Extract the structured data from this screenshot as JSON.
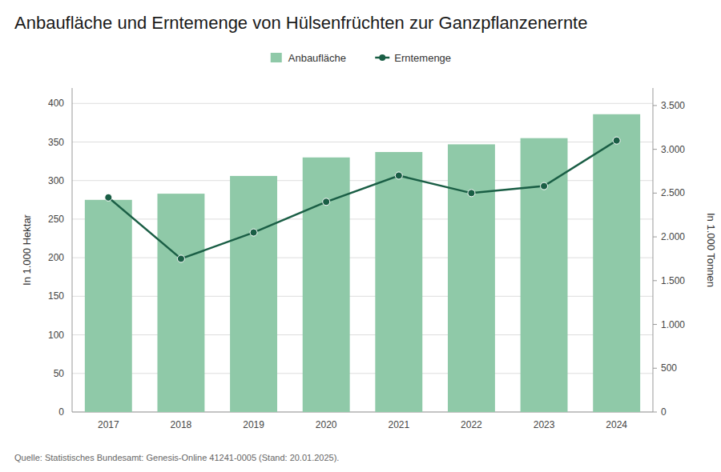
{
  "chart_data": {
    "type": "bar",
    "title": "Anbaufläche und Erntemenge von Hülsenfrüchten zur Ganzpflanzenernte",
    "categories": [
      "2017",
      "2018",
      "2019",
      "2020",
      "2021",
      "2022",
      "2023",
      "2024"
    ],
    "series": [
      {
        "name": "Anbaufläche",
        "type": "bar",
        "color": "#8fC9A8",
        "values": [
          275,
          283,
          306,
          330,
          337,
          347,
          355,
          386
        ]
      },
      {
        "name": "Erntemenge",
        "type": "line",
        "axis": "y2",
        "color": "#1A5E45",
        "marker": "circle",
        "line_style": "solid",
        "values": [
          2450,
          1750,
          2050,
          2400,
          2700,
          2500,
          2580,
          3100
        ]
      }
    ],
    "ylabel": "In 1.000 Hektar",
    "y2label": "In 1.000 Tonnen",
    "ylim": [
      0,
      420
    ],
    "yticks": [
      0,
      50,
      100,
      150,
      200,
      250,
      300,
      350,
      400
    ],
    "y2lim": [
      0,
      3700
    ],
    "y2ticks": [
      0,
      500,
      {
        "value": 1000,
        "label": "1.000"
      },
      {
        "value": 1500,
        "label": "1.500"
      },
      {
        "value": 2000,
        "label": "2.000"
      },
      {
        "value": 2500,
        "label": "2.500"
      },
      {
        "value": 3000,
        "label": "3.000"
      },
      {
        "value": 3500,
        "label": "3.500"
      }
    ],
    "grid": true,
    "legend": "top",
    "source": "Quelle: Statistisches Bundesamt: Genesis-Online 41241-0005 (Stand: 20.01.2025)."
  }
}
